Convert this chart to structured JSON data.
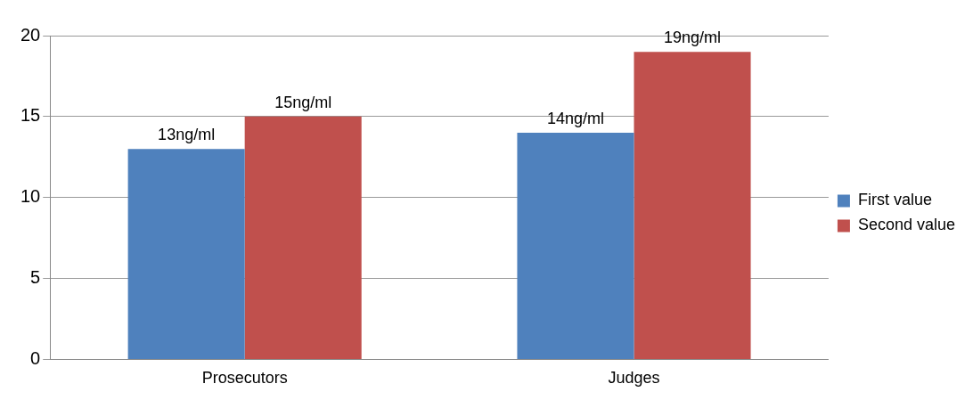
{
  "chart_data": {
    "type": "bar",
    "categories": [
      "Prosecutors",
      "Judges"
    ],
    "series": [
      {
        "name": "First value",
        "color": "#4f81bd",
        "values": [
          13,
          14
        ],
        "value_labels": [
          "13ng/ml",
          "14ng/ml"
        ]
      },
      {
        "name": "Second value",
        "color": "#c0504d",
        "values": [
          15,
          19
        ],
        "value_labels": [
          "15ng/ml",
          "19ng/ml"
        ]
      }
    ],
    "ylim": [
      0,
      20
    ],
    "yticks": [
      0,
      5,
      10,
      15,
      20
    ],
    "grid": "y",
    "legend": "right"
  }
}
